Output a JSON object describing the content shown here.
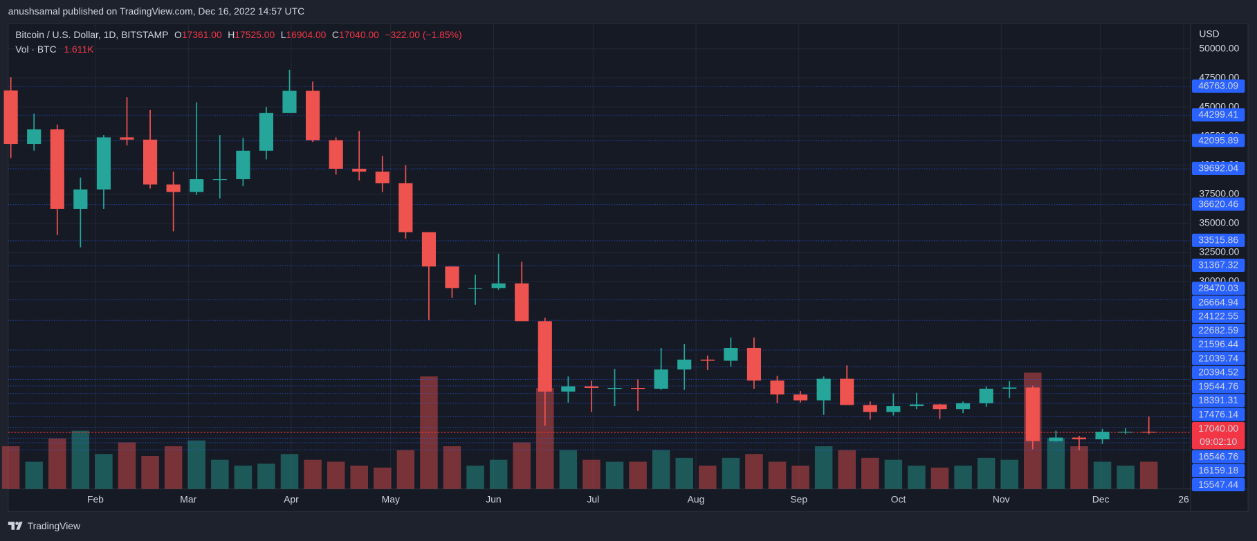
{
  "header": {
    "publisher": "anushsamal published on TradingView.com, Dec 16, 2022 14:57 UTC"
  },
  "chart_data": {
    "type": "candlestick",
    "symbol": "Bitcoin / U.S. Dollar, 1D, BITSTAMP",
    "legend": {
      "o_label": "O",
      "open": "17361.00",
      "h_label": "H",
      "high": "17525.00",
      "l_label": "L",
      "low": "16904.00",
      "c_label": "C",
      "close": "17040.00",
      "change": "−322.00 (−1.85%)"
    },
    "volume_legend": {
      "label": "Vol · BTC",
      "value": "1.611K"
    },
    "currency": "USD",
    "x": [
      3,
      10,
      17,
      24,
      31,
      38,
      45,
      52,
      59,
      66,
      73,
      80,
      87,
      94,
      101,
      108,
      115,
      122,
      129,
      136,
      143,
      150,
      157,
      164,
      171,
      178,
      185,
      192,
      199,
      206,
      213,
      220,
      227,
      234,
      241,
      248,
      255,
      262,
      269,
      276,
      283,
      290,
      297,
      304,
      311,
      318,
      325,
      332,
      339,
      346
    ],
    "open": [
      46430,
      41830,
      43080,
      36250,
      37920,
      42400,
      42200,
      38350,
      37700,
      38800,
      38800,
      41250,
      44500,
      46400,
      42150,
      39700,
      39450,
      38450,
      34250,
      31300,
      29450,
      29450,
      29850,
      26600,
      20550,
      21000,
      20850,
      20850,
      20800,
      22450,
      23300,
      23200,
      24300,
      21500,
      20300,
      19800,
      21650,
      19400,
      18800,
      19300,
      19450,
      19050,
      19550,
      20800,
      20900,
      16300,
      16600,
      16450,
      17100,
      17100
    ],
    "high": [
      47570,
      44430,
      43480,
      38940,
      42600,
      45850,
      44750,
      39450,
      45400,
      42600,
      42350,
      45000,
      48200,
      47200,
      42400,
      42950,
      40800,
      40000,
      34250,
      31300,
      30600,
      32400,
      31700,
      26900,
      21850,
      21500,
      22500,
      21600,
      24300,
      24650,
      23650,
      25200,
      25200,
      21900,
      20600,
      21850,
      22800,
      19700,
      20400,
      20450,
      19500,
      19700,
      21000,
      21450,
      21050,
      17190,
      16750,
      17350,
      17400,
      18400
    ],
    "low": [
      40610,
      41250,
      34000,
      32950,
      36250,
      41700,
      38000,
      34320,
      37450,
      37150,
      38200,
      40500,
      44500,
      42000,
      39200,
      38700,
      37700,
      33700,
      26700,
      28600,
      28000,
      29300,
      26600,
      17600,
      19600,
      18800,
      19300,
      18900,
      20700,
      20700,
      22400,
      22700,
      20800,
      19550,
      19600,
      18550,
      19550,
      18150,
      18500,
      19050,
      18200,
      18700,
      19250,
      20000,
      15600,
      16250,
      15500,
      16050,
      16900,
      16904
    ],
    "close": [
      41830,
      43080,
      36250,
      37920,
      42400,
      42200,
      38350,
      37700,
      38800,
      38800,
      41250,
      44500,
      46400,
      42150,
      39700,
      39450,
      38450,
      34250,
      31300,
      29450,
      29450,
      29850,
      26600,
      20550,
      21000,
      20850,
      20850,
      20800,
      22450,
      23300,
      23200,
      24300,
      21500,
      20300,
      19800,
      21650,
      19400,
      18800,
      19300,
      19450,
      19050,
      19550,
      20800,
      20900,
      16300,
      16600,
      16450,
      17100,
      17100,
      17040
    ],
    "volume": [
      22000,
      14000,
      26000,
      30000,
      18000,
      24000,
      17000,
      22000,
      25000,
      15000,
      12000,
      13000,
      18000,
      15000,
      14000,
      12000,
      11000,
      20000,
      58000,
      22000,
      12000,
      15000,
      24000,
      52000,
      20000,
      15000,
      14000,
      14000,
      20000,
      16000,
      12000,
      16000,
      18000,
      14000,
      12000,
      22000,
      20000,
      16000,
      15000,
      12000,
      11000,
      12000,
      16000,
      15000,
      60000,
      26000,
      22000,
      14000,
      12000,
      14000
    ],
    "xlim": [
      5.7,
      362
    ],
    "xticks": [
      {
        "value": 32,
        "label": "Feb"
      },
      {
        "value": 60,
        "label": "Mar"
      },
      {
        "value": 91,
        "label": "Apr"
      },
      {
        "value": 121,
        "label": "May"
      },
      {
        "value": 152,
        "label": "Jun"
      },
      {
        "value": 182,
        "label": "Jul"
      },
      {
        "value": 213,
        "label": "Aug"
      },
      {
        "value": 244,
        "label": "Sep"
      },
      {
        "value": 274,
        "label": "Oct"
      },
      {
        "value": 305,
        "label": "Nov"
      },
      {
        "value": 335,
        "label": "Dec"
      },
      {
        "value": 360,
        "label": "26"
      }
    ],
    "ylim": [
      12190,
      52200
    ],
    "yticks": [
      {
        "value": 50000,
        "label": "50000.00"
      },
      {
        "value": 47500,
        "label": "47500.00"
      },
      {
        "value": 45000,
        "label": "45000.00"
      },
      {
        "value": 42500,
        "label": "42500.00"
      },
      {
        "value": 40000,
        "label": "40000.00"
      },
      {
        "value": 37500,
        "label": "37500.00"
      },
      {
        "value": 35000,
        "label": "35000.00"
      },
      {
        "value": 32500,
        "label": "32500.00"
      },
      {
        "value": 30000,
        "label": "30000.00"
      }
    ],
    "volume_ylim": [
      0,
      62000
    ],
    "price_lines": [
      46763.09,
      44299.41,
      42095.89,
      39692.04,
      36620.46,
      33515.86,
      31367.32,
      28470.03,
      26664.94,
      24122.55,
      22682.59,
      21596.44,
      21039.74,
      20394.52,
      19544.76,
      18391.31,
      17476.14,
      16546.76,
      16159.18,
      15547.44
    ],
    "last_price": {
      "value": 17040,
      "label": "17040.00",
      "countdown": "09:02:10"
    },
    "up_color": "#26a69a",
    "down_color": "#ef5350",
    "line_color": "#2962ff",
    "last_color": "#f23645",
    "grid": true
  },
  "footer": {
    "logo": "TradingView"
  }
}
